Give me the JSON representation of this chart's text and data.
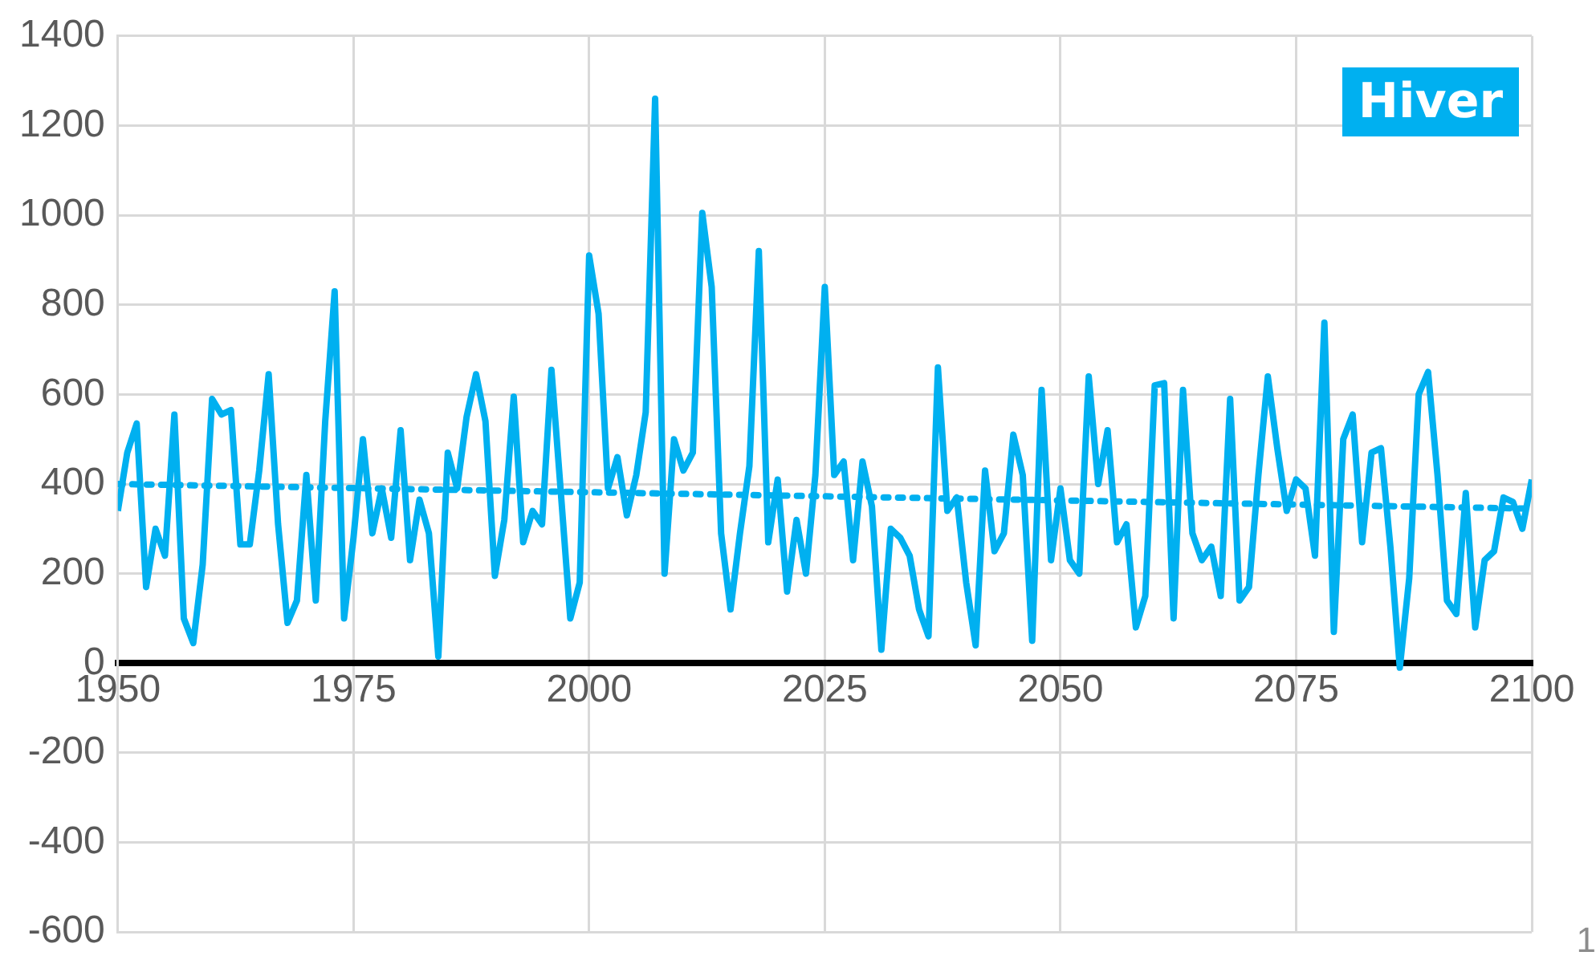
{
  "chart_data": {
    "type": "line",
    "title": "Hiver",
    "annotations": [
      "1"
    ],
    "x": [
      1950,
      1951,
      1952,
      1953,
      1954,
      1955,
      1956,
      1957,
      1958,
      1959,
      1960,
      1961,
      1962,
      1963,
      1964,
      1965,
      1966,
      1967,
      1968,
      1969,
      1970,
      1971,
      1972,
      1973,
      1974,
      1975,
      1976,
      1977,
      1978,
      1979,
      1980,
      1981,
      1982,
      1983,
      1984,
      1985,
      1986,
      1987,
      1988,
      1989,
      1990,
      1991,
      1992,
      1993,
      1994,
      1995,
      1996,
      1997,
      1998,
      1999,
      2000,
      2001,
      2002,
      2003,
      2004,
      2005,
      2006,
      2007,
      2008,
      2009,
      2010,
      2011,
      2012,
      2013,
      2014,
      2015,
      2016,
      2017,
      2018,
      2019,
      2020,
      2021,
      2022,
      2023,
      2024,
      2025,
      2026,
      2027,
      2028,
      2029,
      2030,
      2031,
      2032,
      2033,
      2034,
      2035,
      2036,
      2037,
      2038,
      2039,
      2040,
      2041,
      2042,
      2043,
      2044,
      2045,
      2046,
      2047,
      2048,
      2049,
      2050,
      2051,
      2052,
      2053,
      2054,
      2055,
      2056,
      2057,
      2058,
      2059,
      2060,
      2061,
      2062,
      2063,
      2064,
      2065,
      2066,
      2067,
      2068,
      2069,
      2070,
      2071,
      2072,
      2073,
      2074,
      2075,
      2076,
      2077,
      2078,
      2079,
      2080,
      2081,
      2082,
      2083,
      2084,
      2085,
      2086,
      2087,
      2088,
      2089,
      2090,
      2091,
      2092,
      2093,
      2094,
      2095,
      2096,
      2097,
      2098,
      2099,
      2100
    ],
    "series": [
      {
        "color": "#00b0f0",
        "values": [
          340,
          470,
          535,
          170,
          300,
          240,
          555,
          100,
          45,
          220,
          590,
          555,
          565,
          265,
          265,
          430,
          645,
          310,
          90,
          140,
          420,
          140,
          540,
          830,
          100,
          280,
          500,
          290,
          390,
          280,
          520,
          230,
          365,
          290,
          15,
          470,
          390,
          550,
          645,
          540,
          195,
          320,
          595,
          270,
          340,
          310,
          655,
          380,
          100,
          180,
          910,
          780,
          390,
          460,
          330,
          420,
          560,
          1260,
          200,
          500,
          430,
          470,
          1005,
          840,
          290,
          120,
          290,
          440,
          920,
          270,
          410,
          160,
          320,
          200,
          420,
          840,
          420,
          450,
          230,
          450,
          350,
          30,
          300,
          280,
          240,
          120,
          60,
          660,
          340,
          370,
          180,
          40,
          430,
          250,
          290,
          510,
          420,
          50,
          610,
          230,
          390,
          230,
          200,
          640,
          400,
          520,
          270,
          310,
          80,
          150,
          620,
          625,
          100,
          610,
          290,
          230,
          260,
          150,
          590,
          140,
          170,
          420,
          640,
          480,
          340,
          410,
          390,
          240,
          760,
          70,
          500,
          555,
          270,
          470,
          480,
          260,
          -10,
          190,
          600,
          650,
          420,
          140,
          110,
          380,
          80,
          230,
          250,
          370,
          360,
          300,
          410
        ]
      },
      {
        "type": "line",
        "color": "#00b0f0",
        "line_style": "dotted",
        "x": [
          1950,
          2100
        ],
        "values": [
          400,
          345
        ]
      }
    ],
    "xlim": [
      1950,
      2100
    ],
    "xticks": [
      1950,
      1975,
      2000,
      2025,
      2050,
      2075,
      2100
    ],
    "ylim": [
      -600,
      1400
    ],
    "yticks": [
      -600,
      -400,
      -200,
      0,
      200,
      400,
      600,
      800,
      1000,
      1200,
      1400
    ],
    "grid": true,
    "legend": false,
    "marker": "none",
    "line_style": "solid"
  }
}
